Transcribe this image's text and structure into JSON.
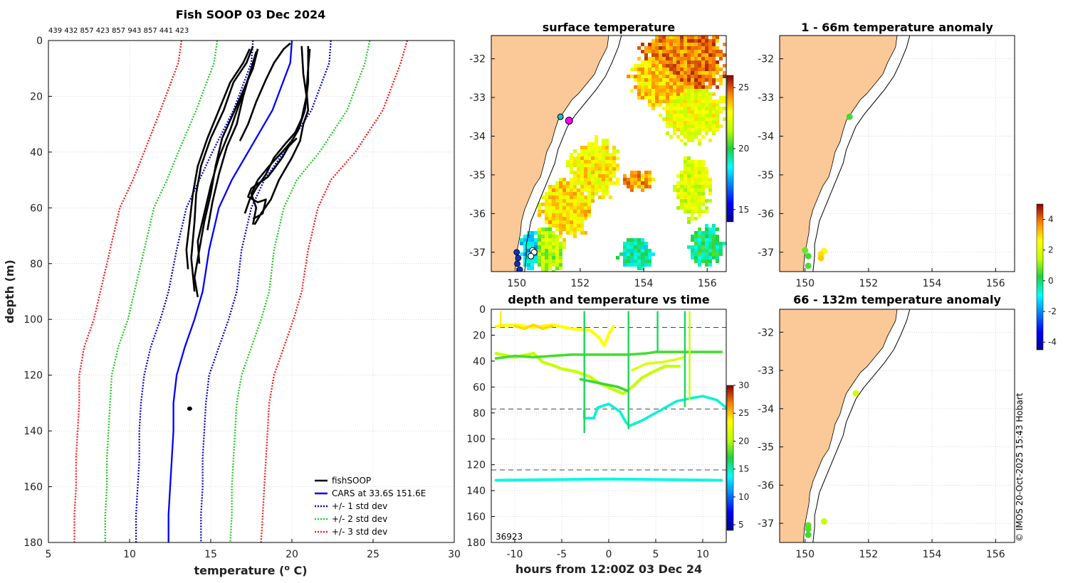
{
  "chart_data": [
    {
      "type": "line",
      "name": "profile",
      "title": "Fish SOOP 03 Dec 2024",
      "subtitle": "439 432 857 423 857 943 857 441 423",
      "xlabel": "temperature (o C)",
      "xlabel_main": "temperature (",
      "xlabel_sup": "o",
      "xlabel_end": " C)",
      "ylabel": "depth (m)",
      "xlim": [
        5,
        30
      ],
      "ylim": [
        0,
        180
      ],
      "xticks": [
        "5",
        "10",
        "15",
        "20",
        "25",
        "30"
      ],
      "yticks": [
        "0",
        "20",
        "40",
        "60",
        "80",
        "100",
        "120",
        "140",
        "160",
        "180"
      ],
      "legend": [
        "fishSOOP",
        "CARS at 33.6S 151.6E",
        "+/- 1 std dev",
        "+/- 2 std dev",
        "+/- 3 std dev"
      ],
      "colors": {
        "fish": "#000000",
        "cars": "#0000ff",
        "std1": "#0000cc",
        "std2": "#22cc22",
        "std3": "#ff1a1a"
      },
      "cars_mean": [
        [
          20.0,
          0
        ],
        [
          19.9,
          8
        ],
        [
          18.8,
          25
        ],
        [
          17.3,
          40
        ],
        [
          16.3,
          50
        ],
        [
          15.5,
          60
        ],
        [
          14.9,
          75
        ],
        [
          14.5,
          90
        ],
        [
          14.0,
          100
        ],
        [
          13.4,
          110
        ],
        [
          12.9,
          120
        ],
        [
          12.7,
          130
        ],
        [
          12.7,
          140
        ],
        [
          12.6,
          150
        ],
        [
          12.5,
          160
        ],
        [
          12.4,
          170
        ],
        [
          12.4,
          180
        ]
      ],
      "std1_lower": [
        [
          17.6,
          0
        ],
        [
          17.5,
          8
        ],
        [
          16.4,
          25
        ],
        [
          15.1,
          40
        ],
        [
          14.3,
          50
        ],
        [
          13.5,
          60
        ],
        [
          12.9,
          75
        ],
        [
          12.4,
          90
        ],
        [
          11.9,
          100
        ],
        [
          11.3,
          110
        ],
        [
          10.9,
          120
        ],
        [
          10.7,
          130
        ],
        [
          10.6,
          140
        ],
        [
          10.6,
          150
        ],
        [
          10.5,
          160
        ],
        [
          10.4,
          170
        ],
        [
          10.4,
          180
        ]
      ],
      "std1_upper": [
        [
          22.4,
          0
        ],
        [
          22.3,
          8
        ],
        [
          21.2,
          25
        ],
        [
          19.5,
          40
        ],
        [
          18.3,
          50
        ],
        [
          17.5,
          60
        ],
        [
          16.9,
          75
        ],
        [
          16.6,
          90
        ],
        [
          16.1,
          100
        ],
        [
          15.5,
          110
        ],
        [
          14.9,
          120
        ],
        [
          14.7,
          130
        ],
        [
          14.6,
          140
        ],
        [
          14.5,
          150
        ],
        [
          14.5,
          160
        ],
        [
          14.4,
          170
        ],
        [
          14.4,
          180
        ]
      ],
      "std2_lower": [
        [
          15.4,
          0
        ],
        [
          15.2,
          8
        ],
        [
          14.1,
          25
        ],
        [
          13.0,
          40
        ],
        [
          12.3,
          50
        ],
        [
          11.5,
          60
        ],
        [
          10.9,
          75
        ],
        [
          10.3,
          90
        ],
        [
          9.9,
          100
        ],
        [
          9.3,
          110
        ],
        [
          8.9,
          120
        ],
        [
          8.8,
          130
        ],
        [
          8.7,
          140
        ],
        [
          8.6,
          150
        ],
        [
          8.6,
          160
        ],
        [
          8.5,
          170
        ],
        [
          8.5,
          180
        ]
      ],
      "std2_upper": [
        [
          24.8,
          0
        ],
        [
          24.5,
          8
        ],
        [
          23.4,
          25
        ],
        [
          21.7,
          40
        ],
        [
          20.3,
          50
        ],
        [
          19.5,
          60
        ],
        [
          18.9,
          75
        ],
        [
          18.6,
          90
        ],
        [
          18.1,
          100
        ],
        [
          17.5,
          110
        ],
        [
          16.9,
          120
        ],
        [
          16.6,
          130
        ],
        [
          16.5,
          140
        ],
        [
          16.4,
          150
        ],
        [
          16.3,
          160
        ],
        [
          16.3,
          170
        ],
        [
          16.2,
          180
        ]
      ],
      "std3_lower": [
        [
          13.2,
          0
        ],
        [
          13.0,
          8
        ],
        [
          11.9,
          25
        ],
        [
          10.9,
          40
        ],
        [
          10.2,
          50
        ],
        [
          9.4,
          60
        ],
        [
          8.8,
          75
        ],
        [
          8.2,
          90
        ],
        [
          7.8,
          100
        ],
        [
          7.2,
          110
        ],
        [
          6.9,
          120
        ],
        [
          6.9,
          130
        ],
        [
          6.8,
          140
        ],
        [
          6.7,
          150
        ],
        [
          6.7,
          160
        ],
        [
          6.6,
          170
        ],
        [
          6.6,
          180
        ]
      ],
      "std3_upper": [
        [
          27.1,
          0
        ],
        [
          26.7,
          8
        ],
        [
          25.6,
          25
        ],
        [
          23.9,
          40
        ],
        [
          22.4,
          50
        ],
        [
          21.6,
          60
        ],
        [
          21.0,
          75
        ],
        [
          20.6,
          90
        ],
        [
          20.1,
          100
        ],
        [
          19.5,
          110
        ],
        [
          18.9,
          120
        ],
        [
          18.6,
          130
        ],
        [
          18.5,
          140
        ],
        [
          18.4,
          150
        ],
        [
          18.3,
          160
        ],
        [
          18.2,
          170
        ],
        [
          18.1,
          180
        ]
      ],
      "fish_profiles": [
        [
          [
            17.4,
            3
          ],
          [
            17.0,
            8
          ],
          [
            16.2,
            15
          ],
          [
            15.5,
            25
          ],
          [
            14.8,
            35
          ],
          [
            14.2,
            45
          ],
          [
            13.9,
            55
          ],
          [
            13.7,
            65
          ],
          [
            13.5,
            75
          ],
          [
            13.6,
            82
          ]
        ],
        [
          [
            17.6,
            2
          ],
          [
            17.2,
            8
          ],
          [
            16.4,
            15
          ],
          [
            15.8,
            25
          ],
          [
            15.0,
            35
          ],
          [
            14.4,
            45
          ],
          [
            14.1,
            55
          ],
          [
            14.0,
            65
          ],
          [
            13.8,
            78
          ],
          [
            14.0,
            90
          ]
        ],
        [
          [
            17.9,
            3
          ],
          [
            17.6,
            10
          ],
          [
            17.0,
            18
          ],
          [
            16.4,
            26
          ],
          [
            15.7,
            35
          ],
          [
            15.3,
            45
          ],
          [
            15.0,
            55
          ],
          [
            14.6,
            65
          ],
          [
            14.3,
            75
          ],
          [
            14.0,
            85
          ],
          [
            14.2,
            92
          ]
        ],
        [
          [
            17.8,
            4
          ],
          [
            17.4,
            12
          ],
          [
            16.8,
            22
          ],
          [
            16.2,
            32
          ],
          [
            15.5,
            42
          ],
          [
            15.0,
            52
          ],
          [
            14.6,
            62
          ],
          [
            14.2,
            72
          ],
          [
            14.3,
            80
          ]
        ],
        [
          [
            17.9,
            3
          ],
          [
            17.5,
            10
          ],
          [
            17.0,
            20
          ],
          [
            16.6,
            30
          ],
          [
            16.0,
            38
          ],
          [
            15.5,
            48
          ],
          [
            15.1,
            58
          ],
          [
            14.8,
            68
          ]
        ],
        [
          [
            19.9,
            1
          ],
          [
            19.5,
            3
          ],
          [
            18.9,
            8
          ],
          [
            18.4,
            14
          ],
          [
            17.8,
            22
          ],
          [
            17.3,
            30
          ],
          [
            16.8,
            36
          ]
        ],
        [
          [
            21.0,
            2
          ],
          [
            21.0,
            15
          ],
          [
            20.8,
            25
          ],
          [
            20.4,
            32
          ],
          [
            20.0,
            36
          ],
          [
            19.4,
            40
          ],
          [
            18.6,
            45
          ],
          [
            17.9,
            50
          ],
          [
            17.5,
            55
          ],
          [
            17.8,
            60
          ],
          [
            17.6,
            66
          ]
        ],
        [
          [
            20.6,
            2
          ],
          [
            20.7,
            12
          ],
          [
            20.9,
            20
          ],
          [
            20.6,
            28
          ],
          [
            20.2,
            33
          ],
          [
            19.6,
            37
          ],
          [
            18.9,
            42
          ],
          [
            18.4,
            48
          ],
          [
            17.8,
            53
          ],
          [
            17.4,
            57
          ],
          [
            17.1,
            62
          ]
        ],
        [
          [
            21.1,
            3
          ],
          [
            21.0,
            10
          ],
          [
            20.9,
            18
          ],
          [
            21.0,
            25
          ],
          [
            20.7,
            30
          ],
          [
            20.5,
            36
          ],
          [
            20.0,
            42
          ],
          [
            19.2,
            50
          ],
          [
            18.7,
            57
          ],
          [
            18.1,
            62
          ],
          [
            17.7,
            66
          ]
        ],
        [
          [
            20.3,
            35
          ],
          [
            19.8,
            38
          ],
          [
            19.4,
            42
          ],
          [
            18.9,
            46
          ],
          [
            18.5,
            49
          ],
          [
            18.0,
            51
          ],
          [
            17.5,
            53
          ],
          [
            17.3,
            56
          ],
          [
            17.9,
            58
          ],
          [
            18.4,
            57
          ],
          [
            18.2,
            62
          ],
          [
            17.6,
            64
          ]
        ]
      ],
      "fish_blob": [
        13.7,
        132
      ]
    },
    {
      "type": "heatmap",
      "name": "surface_map",
      "title": "surface temperature",
      "xticks": [
        "150",
        "152",
        "154",
        "156"
      ],
      "yticks": [
        "-32",
        "-33",
        "-34",
        "-35",
        "-36",
        "-37"
      ],
      "xlim": [
        149.2,
        156.6
      ],
      "ylim": [
        -37.5,
        -31.4
      ],
      "colorbar_ticks": [
        "25",
        "20",
        "15"
      ],
      "colorbar_range": [
        14,
        26
      ]
    },
    {
      "type": "scatter",
      "name": "time_series",
      "title": "depth and temperature vs time",
      "xlabel": "hours from 12:00Z 03 Dec 24",
      "xticks": [
        "-10",
        "-5",
        "0",
        "5",
        "10"
      ],
      "yticks": [
        "0",
        "20",
        "40",
        "60",
        "80",
        "100",
        "120",
        "140",
        "160",
        "180"
      ],
      "xlim": [
        -12.5,
        12.5
      ],
      "ylim": [
        0,
        180
      ],
      "dashed_depths": [
        14,
        77,
        124
      ],
      "colorbar_ticks": [
        "30",
        "25",
        "20",
        "15",
        "10",
        "5"
      ],
      "colorbar_range": [
        4,
        30
      ],
      "corner_label": "36923"
    },
    {
      "type": "scatter",
      "name": "anomaly_1_66",
      "title": "1 - 66m temperature anomaly",
      "xticks": [
        "150",
        "152",
        "154",
        "156"
      ],
      "yticks": [
        "-32",
        "-33",
        "-34",
        "-35",
        "-36",
        "-37"
      ],
      "points": [
        {
          "lon": 151.4,
          "lat": -33.5,
          "anom": 0.5
        },
        {
          "lon": 150.0,
          "lat": -36.95,
          "anom": 0.8
        },
        {
          "lon": 150.1,
          "lat": -37.1,
          "anom": 0.5
        },
        {
          "lon": 150.6,
          "lat": -36.97,
          "anom": 2.5
        },
        {
          "lon": 150.5,
          "lat": -37.05,
          "anom": 2.9
        },
        {
          "lon": 150.5,
          "lat": -37.15,
          "anom": 3.1
        },
        {
          "lon": 150.1,
          "lat": -37.35,
          "anom": 0.6
        }
      ]
    },
    {
      "type": "scatter",
      "name": "anomaly_66_132",
      "title": "66 - 132m temperature anomaly",
      "xticks": [
        "150",
        "152",
        "154",
        "156"
      ],
      "yticks": [
        "-32",
        "-33",
        "-34",
        "-35",
        "-36",
        "-37"
      ],
      "points": [
        {
          "lon": 151.6,
          "lat": -33.6,
          "anom": 1.7
        },
        {
          "lon": 150.6,
          "lat": -36.95,
          "anom": 1.6
        },
        {
          "lon": 150.1,
          "lat": -37.05,
          "anom": 0.7
        },
        {
          "lon": 150.1,
          "lat": -37.15,
          "anom": 0.6
        },
        {
          "lon": 150.1,
          "lat": -37.3,
          "anom": 0.5
        }
      ],
      "colorbar_ticks": [
        "4",
        "2",
        "0",
        "-2",
        "-4"
      ],
      "colorbar_range": [
        -4.5,
        5.0
      ]
    }
  ],
  "credit": "© IMOS 20-Oct-2025 15:43 Hobart"
}
